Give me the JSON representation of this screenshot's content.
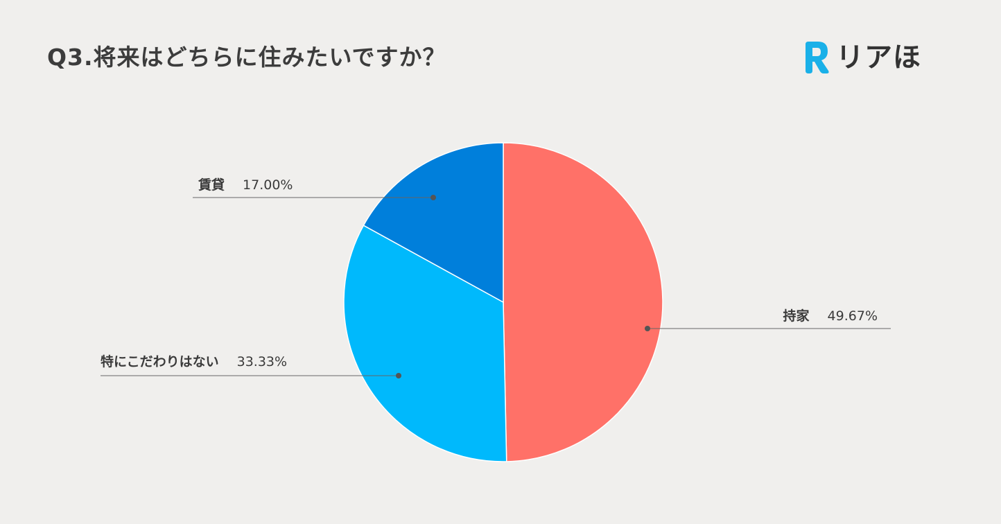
{
  "title": "Q3.将来はどちらに住みたいですか？",
  "brand": {
    "logo_text": "リアほ",
    "logo_mark_color": "#1ab0e8",
    "logo_mark_icon": "r-logo-icon"
  },
  "chart_data": {
    "type": "pie",
    "title": "Q3.将来はどちらに住みたいですか？",
    "slices": [
      {
        "label": "持家",
        "value": 49.67,
        "value_text": "49.67%",
        "color": "#ff7168"
      },
      {
        "label": "特にこだわりはない",
        "value": 33.33,
        "value_text": "33.33%",
        "color": "#00b9fc"
      },
      {
        "label": "賃貸",
        "value": 17.0,
        "value_text": "17.00%",
        "color": "#007fdb"
      }
    ],
    "start_angle": "12 o'clock",
    "direction": "clockwise",
    "legend": "none"
  }
}
